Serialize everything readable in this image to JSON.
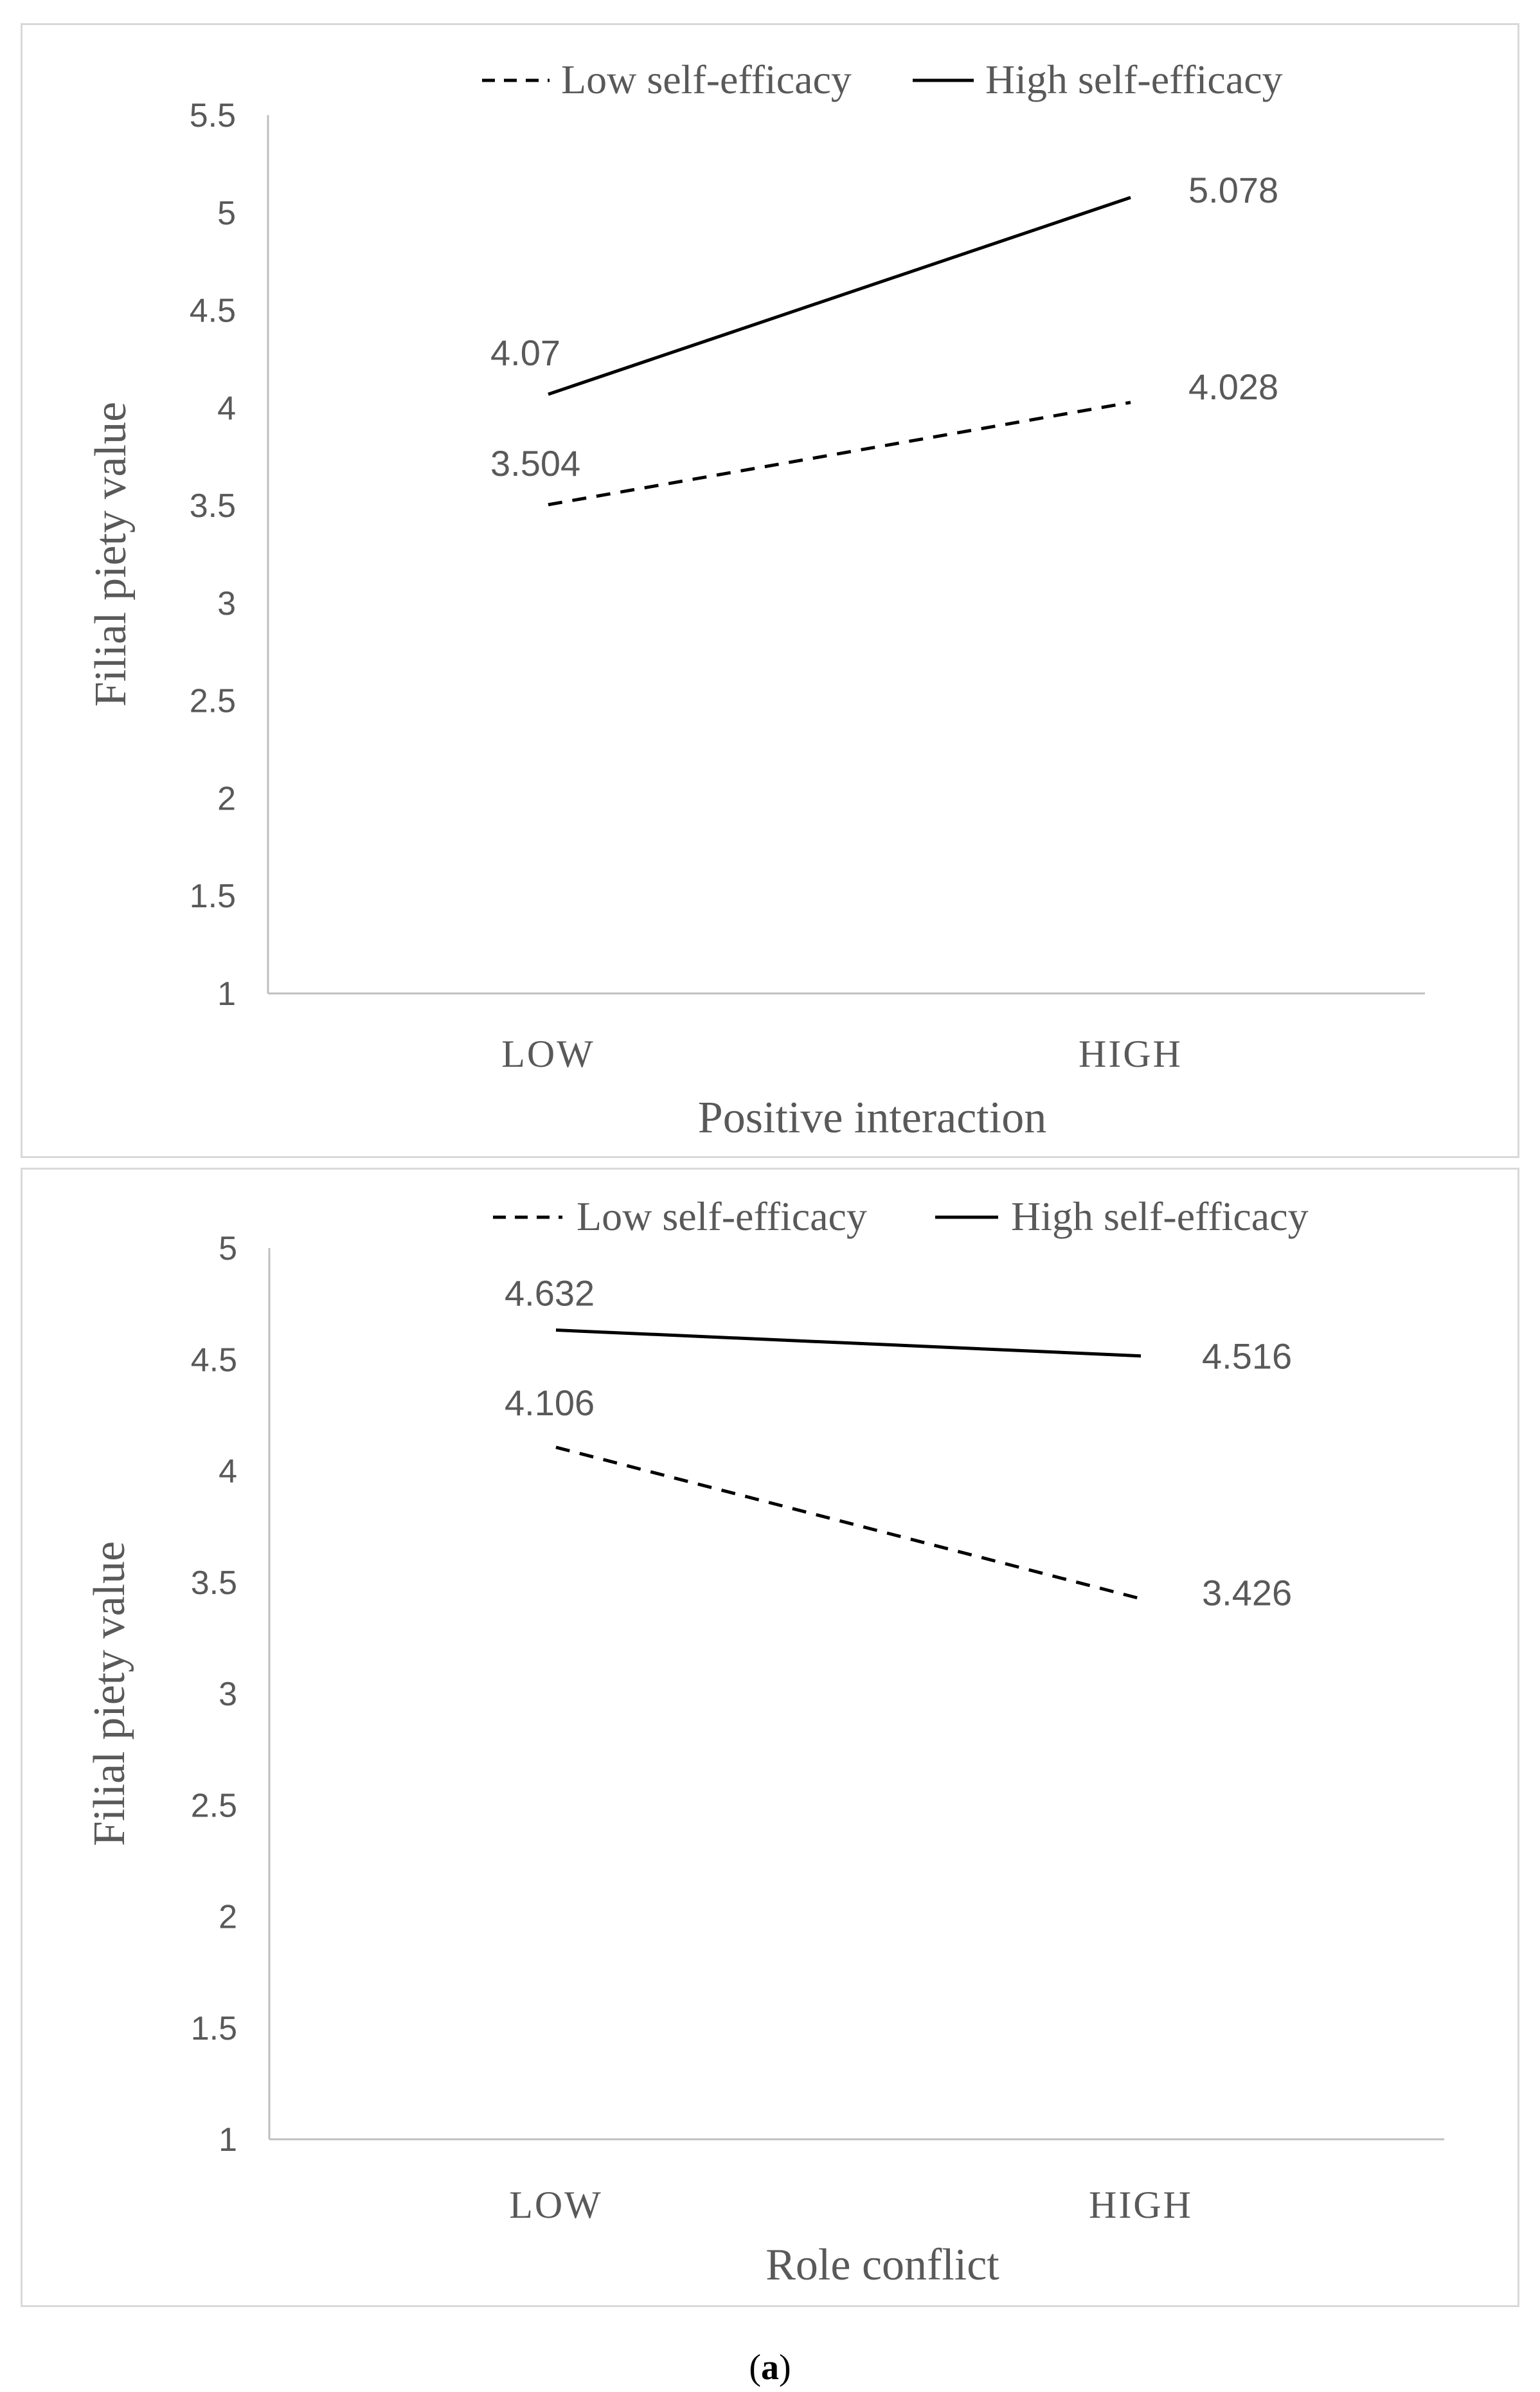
{
  "chart_data": [
    {
      "type": "line",
      "title": "",
      "xlabel": "Positive interaction",
      "ylabel": "Filial piety value",
      "categories": [
        "LOW",
        "HIGH"
      ],
      "ylim": [
        1,
        5.5
      ],
      "yticks": [
        "1",
        "1.5",
        "2",
        "2.5",
        "3",
        "3.5",
        "4",
        "4.5",
        "5",
        "5.5"
      ],
      "grid": false,
      "legend_position": "top",
      "series": [
        {
          "name": "Low self-efficacy",
          "style": "dashed",
          "values": [
            3.504,
            4.028
          ],
          "labels": [
            "3.504",
            "4.028"
          ]
        },
        {
          "name": "High self-efficacy",
          "style": "solid",
          "values": [
            4.07,
            5.078
          ],
          "labels": [
            "4.07",
            "5.078"
          ]
        }
      ]
    },
    {
      "type": "line",
      "title": "",
      "xlabel": "Role conflict",
      "ylabel": "Filial piety value",
      "categories": [
        "LOW",
        "HIGH"
      ],
      "ylim": [
        1,
        5
      ],
      "yticks": [
        "1",
        "1.5",
        "2",
        "2.5",
        "3",
        "3.5",
        "4",
        "4.5",
        "5"
      ],
      "grid": false,
      "legend_position": "top",
      "series": [
        {
          "name": "Low self-efficacy",
          "style": "dashed",
          "values": [
            4.106,
            3.426
          ],
          "labels": [
            "4.106",
            "3.426"
          ]
        },
        {
          "name": "High self-efficacy",
          "style": "solid",
          "values": [
            4.632,
            4.516
          ],
          "labels": [
            "4.632",
            "4.516"
          ]
        }
      ]
    }
  ],
  "caption": {
    "open": "(",
    "letter": "a",
    "close": ")"
  },
  "colors": {
    "line": "#000000",
    "axis": "#bfbfbf",
    "tick_text": "#595959",
    "label_text": "#595959"
  }
}
